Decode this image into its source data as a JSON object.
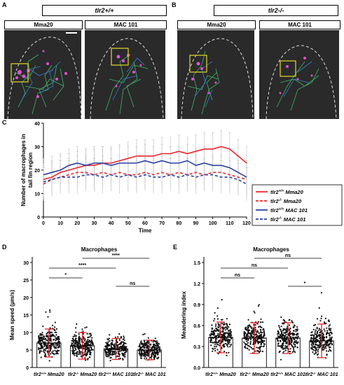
{
  "panel_labels": {
    "a": "A",
    "b": "B",
    "c": "C",
    "d": "D",
    "e": "E"
  },
  "panel_a": {
    "genotype": "tlr2+/+",
    "strain_left": "Mma20",
    "strain_right": "MAC 101"
  },
  "panel_b": {
    "genotype": "tlr2-/-",
    "strain_left": "Mma20",
    "strain_right": "MAC 101"
  },
  "colors": {
    "red": "#e8262b",
    "blue": "#2b3ea3",
    "grid": "#bdbdbd",
    "micro_bg": "#2a2a2a"
  },
  "chart_data": [
    {
      "type": "line",
      "xlabel": "Time",
      "ylabel": "Number of macrophages in tail fin region",
      "xlim": [
        0,
        120
      ],
      "ylim": [
        0,
        40
      ],
      "xticks": [
        0,
        10,
        20,
        30,
        40,
        50,
        60,
        70,
        80,
        90,
        100,
        110,
        120
      ],
      "yticks": [
        0,
        10,
        20,
        30,
        40
      ],
      "legend_position": "right",
      "x": [
        0,
        5,
        10,
        15,
        20,
        25,
        30,
        35,
        40,
        45,
        50,
        55,
        60,
        65,
        70,
        75,
        80,
        85,
        90,
        95,
        100,
        105,
        110,
        115,
        120
      ],
      "series": [
        {
          "name": "tlr2+/+ Mma20",
          "color": "#e8262b",
          "dash": "solid",
          "values": [
            16,
            17,
            19,
            20,
            21,
            22,
            22,
            23,
            23,
            24,
            25,
            26,
            26,
            26,
            27,
            27,
            28,
            27,
            28,
            29,
            29,
            30,
            29,
            26,
            23
          ]
        },
        {
          "name": "tlr2-/- Mma20",
          "color": "#e8262b",
          "dash": "dashed",
          "values": [
            14,
            16,
            17,
            18,
            19,
            19,
            18,
            19,
            18,
            19,
            18,
            18,
            19,
            18,
            19,
            18,
            19,
            18,
            19,
            18,
            19,
            19,
            18,
            17,
            16
          ]
        },
        {
          "name": "tlr2+/+ MAC 101",
          "color": "#2b3ea3",
          "dash": "solid",
          "values": [
            18,
            19,
            20,
            22,
            23,
            22,
            23,
            23,
            22,
            23,
            23,
            23,
            24,
            23,
            24,
            23,
            23,
            24,
            22,
            23,
            22,
            22,
            21,
            19,
            17
          ]
        },
        {
          "name": "tlr2-/- MAC 101",
          "color": "#2b3ea3",
          "dash": "dashed",
          "values": [
            15,
            16,
            17,
            17,
            17,
            18,
            18,
            17,
            18,
            17,
            18,
            17,
            18,
            17,
            17,
            18,
            17,
            18,
            17,
            18,
            18,
            17,
            17,
            16,
            14
          ]
        }
      ]
    },
    {
      "type": "bar",
      "title": "Macrophages",
      "ylabel": "Mean speed (µm/s)",
      "ylim": [
        0,
        30
      ],
      "yticks": [
        0,
        5,
        10,
        15,
        20,
        25,
        30
      ],
      "categories": [
        "tlr2+/+ Mma20",
        "tlr2-/- Mma20",
        "tlr2+/+ MAC 101",
        "tlr2-/- MAC 101"
      ],
      "values": [
        7.0,
        6.2,
        5.3,
        5.0
      ],
      "errors": [
        4.0,
        3.8,
        3.0,
        2.8
      ],
      "significance": [
        {
          "a": 0,
          "b": 1,
          "label": "*"
        },
        {
          "a": 0,
          "b": 2,
          "label": "****"
        },
        {
          "a": 2,
          "b": 3,
          "label": "ns"
        },
        {
          "a": 1,
          "b": 3,
          "label": "****"
        }
      ]
    },
    {
      "type": "bar",
      "title": "Macrophages",
      "ylabel": "Meandering index",
      "ylim": [
        0,
        1.5
      ],
      "yticks": [
        0.0,
        0.3,
        0.6,
        0.9,
        1.2,
        1.5
      ],
      "categories": [
        "tlr2+/+ Mma20",
        "tlr2-/- Mma20",
        "tlr2+/+ MAC 101",
        "tlr2-/- MAC 101"
      ],
      "values": [
        0.43,
        0.42,
        0.42,
        0.38
      ],
      "errors": [
        0.22,
        0.22,
        0.22,
        0.24
      ],
      "significance": [
        {
          "a": 0,
          "b": 1,
          "label": "ns"
        },
        {
          "a": 0,
          "b": 2,
          "label": "ns"
        },
        {
          "a": 2,
          "b": 3,
          "label": "*"
        },
        {
          "a": 1,
          "b": 3,
          "label": "ns"
        }
      ]
    }
  ]
}
